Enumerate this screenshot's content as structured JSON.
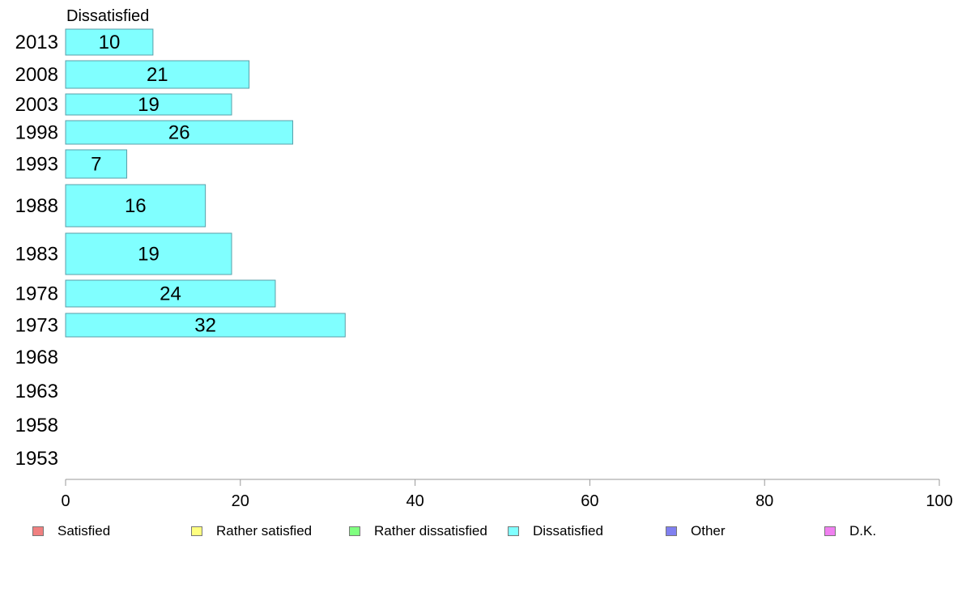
{
  "chart_data": {
    "type": "bar",
    "orientation": "horizontal",
    "title": "Dissatisfied",
    "categories": [
      "2013",
      "2008",
      "2003",
      "1998",
      "1993",
      "1988",
      "1983",
      "1978",
      "1973",
      "1968",
      "1963",
      "1958",
      "1953"
    ],
    "values": [
      10,
      21,
      19,
      26,
      7,
      16,
      19,
      24,
      32,
      null,
      null,
      null,
      null
    ],
    "xlim": [
      0,
      100
    ],
    "xticks": [
      "0",
      "20",
      "40",
      "60",
      "80",
      "100"
    ],
    "xlabel": "",
    "ylabel": "",
    "grid": false,
    "bar_color": "#80ffff",
    "legend": {
      "position": "bottom",
      "entries": [
        {
          "label": "Satisfied",
          "color": "#f08080"
        },
        {
          "label": "Rather satisfied",
          "color": "#ffff80"
        },
        {
          "label": "Rather dissatisfied",
          "color": "#80ff80"
        },
        {
          "label": "Dissatisfied",
          "color": "#80ffff"
        },
        {
          "label": "Other",
          "color": "#8080f0"
        },
        {
          "label": "D.K.",
          "color": "#f080f0"
        }
      ]
    }
  }
}
